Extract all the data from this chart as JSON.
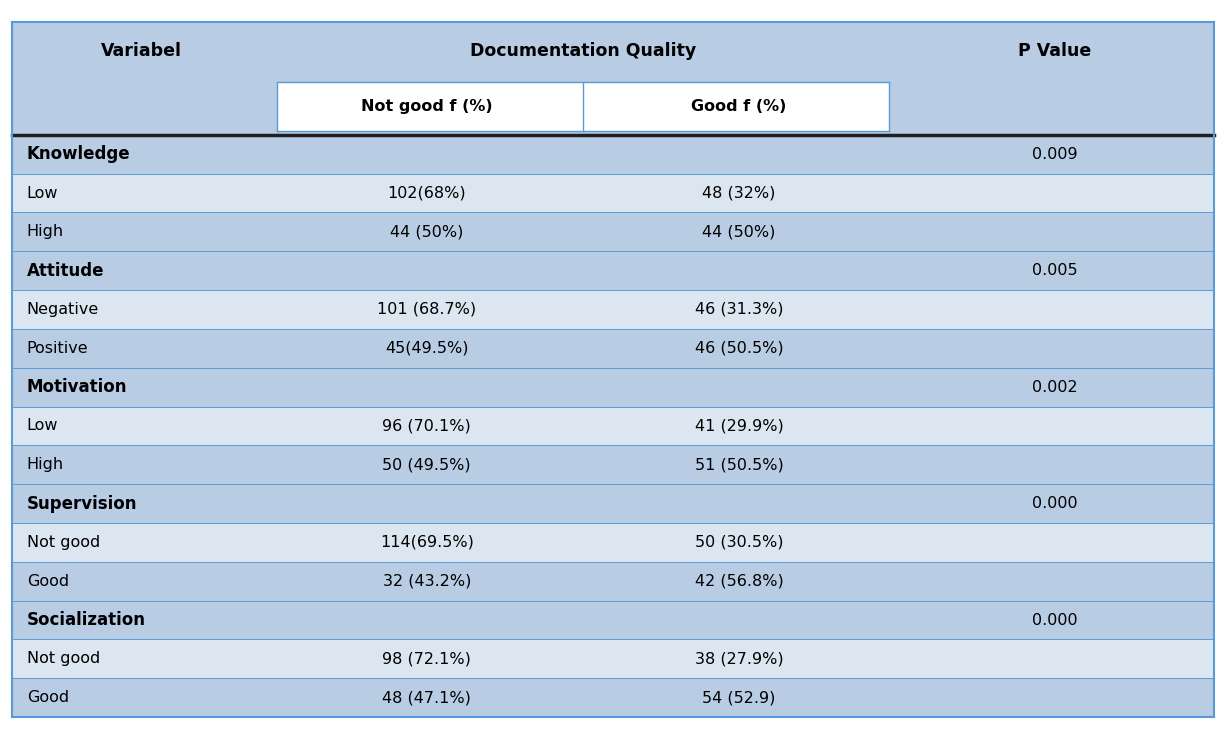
{
  "header_bg": "#b8cce4",
  "row_bg_light": "#dce6f1",
  "headers": [
    "Variabel",
    "Documentation Quality",
    "P Value"
  ],
  "subheaders": [
    "Not good f (%)",
    "Good f (%)"
  ],
  "rows": [
    {
      "label": "Knowledge",
      "bold": true,
      "not_good": "",
      "good": "",
      "pvalue": "0.009"
    },
    {
      "label": "Low",
      "bold": false,
      "not_good": "102(68%)",
      "good": "48 (32%)",
      "pvalue": ""
    },
    {
      "label": "High",
      "bold": false,
      "not_good": "44 (50%)",
      "good": "44 (50%)",
      "pvalue": ""
    },
    {
      "label": "Attitude",
      "bold": true,
      "not_good": "",
      "good": "",
      "pvalue": "0.005"
    },
    {
      "label": "Negative",
      "bold": false,
      "not_good": "101 (68.7%)",
      "good": "46 (31.3%)",
      "pvalue": ""
    },
    {
      "label": "Positive",
      "bold": false,
      "not_good": "45(49.5%)",
      "good": "46 (50.5%)",
      "pvalue": ""
    },
    {
      "label": "Motivation",
      "bold": true,
      "not_good": "",
      "good": "",
      "pvalue": "0.002"
    },
    {
      "label": "Low",
      "bold": false,
      "not_good": "96 (70.1%)",
      "good": "41 (29.9%)",
      "pvalue": ""
    },
    {
      "label": "High",
      "bold": false,
      "not_good": "50 (49.5%)",
      "good": "51 (50.5%)",
      "pvalue": ""
    },
    {
      "label": "Supervision",
      "bold": true,
      "not_good": "",
      "good": "",
      "pvalue": "0.000"
    },
    {
      "label": "Not good",
      "bold": false,
      "not_good": "114(69.5%)",
      "good": "50 (30.5%)",
      "pvalue": ""
    },
    {
      "label": "Good",
      "bold": false,
      "not_good": "32 (43.2%)",
      "good": "42 (56.8%)",
      "pvalue": ""
    },
    {
      "label": "Socialization",
      "bold": true,
      "not_good": "",
      "good": "",
      "pvalue": "0.000"
    },
    {
      "label": "Not good",
      "bold": false,
      "not_good": "98 (72.1%)",
      "good": "38 (27.9%)",
      "pvalue": ""
    },
    {
      "label": "Good",
      "bold": false,
      "not_good": "48 (47.1%)",
      "good": "54 (52.9)",
      "pvalue": ""
    }
  ],
  "header_bg_color": "#b8cce4",
  "white_subheader_bg": "#ffffff",
  "dark_row_bg": "#b8cce4",
  "light_row_bg": "#dce6f1",
  "outer_border_color": "#5b9bd5",
  "inner_line_color": "#5b9bd5",
  "thick_line_color": "#1f1f1f",
  "text_color": "#000000",
  "fontsize": 11.5,
  "header_fontsize": 12.5,
  "bold_row_fontsize": 12
}
